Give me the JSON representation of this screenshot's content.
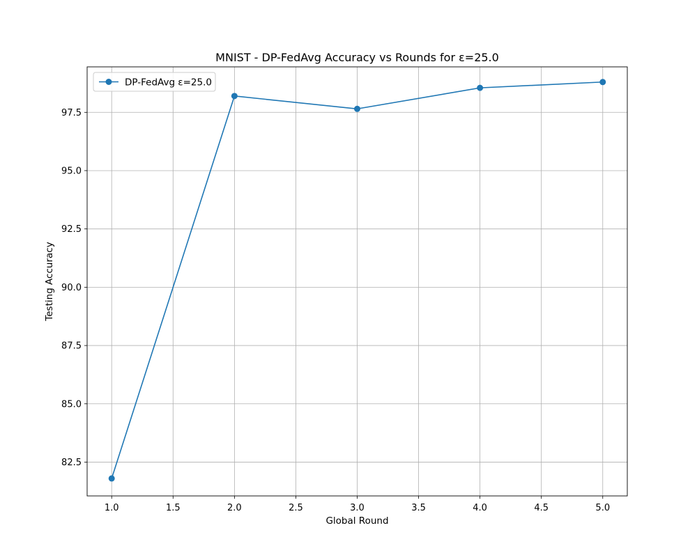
{
  "chart_data": {
    "type": "line",
    "title": "MNIST - DP-FedAvg Accuracy vs Rounds for ε=25.0",
    "xlabel": "Global Round",
    "ylabel": "Testing Accuracy",
    "xlim": [
      0.8,
      5.2
    ],
    "ylim": [
      81.05,
      99.45
    ],
    "xticks": [
      1.0,
      1.5,
      2.0,
      2.5,
      3.0,
      3.5,
      4.0,
      4.5,
      5.0
    ],
    "xtick_labels": [
      "1.0",
      "1.5",
      "2.0",
      "2.5",
      "3.0",
      "3.5",
      "4.0",
      "4.5",
      "5.0"
    ],
    "yticks": [
      82.5,
      85.0,
      87.5,
      90.0,
      92.5,
      95.0,
      97.5
    ],
    "ytick_labels": [
      "82.5",
      "85.0",
      "87.5",
      "90.0",
      "92.5",
      "95.0",
      "97.5"
    ],
    "grid": true,
    "legend_position": "top-left",
    "series": [
      {
        "name": "DP-FedAvg ε=25.0",
        "color": "#1f77b4",
        "marker": "circle",
        "x": [
          1.0,
          2.0,
          3.0,
          4.0,
          5.0
        ],
        "y": [
          81.8,
          98.2,
          97.65,
          98.55,
          98.8
        ]
      }
    ]
  }
}
